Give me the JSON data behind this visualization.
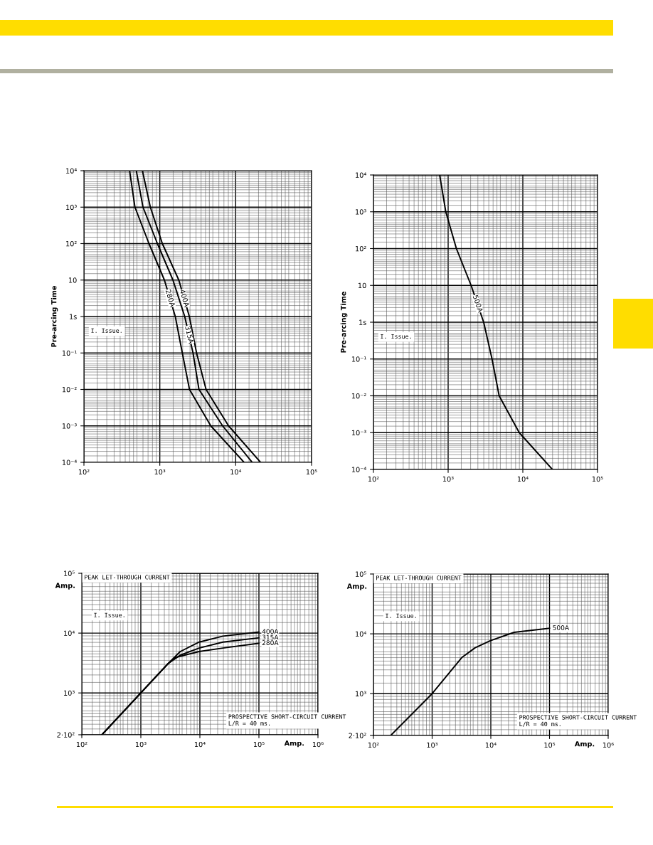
{
  "chart_data": [
    {
      "type": "line",
      "ylabel": "Pre-arcing Time",
      "annotations": [
        "I. Issue."
      ],
      "log": "xy",
      "grid": true,
      "legend": false,
      "marker": "none",
      "line_style": "solid",
      "xlim": [
        100,
        100000
      ],
      "xticks": [
        {
          "value": 100,
          "label": "10²"
        },
        {
          "value": 1000,
          "label": "10³"
        },
        {
          "value": 10000,
          "label": "10⁴"
        },
        {
          "value": 100000,
          "label": "10⁵"
        }
      ],
      "ylim": [
        0.0001,
        10000
      ],
      "yticks": [
        {
          "value": 0.0001,
          "label": "10⁻⁴"
        },
        {
          "value": 0.001,
          "label": "10⁻³"
        },
        {
          "value": 0.01,
          "label": "10⁻²"
        },
        {
          "value": 0.1,
          "label": "10⁻¹"
        },
        {
          "value": 1,
          "label": "1s"
        },
        10,
        {
          "value": 100,
          "label": "10²"
        },
        {
          "value": 1000,
          "label": "10³"
        },
        {
          "value": 10000,
          "label": "10⁴"
        }
      ],
      "series": [
        {
          "name": "280A",
          "color": "#000000",
          "x": [
            400,
            470,
            720,
            1150,
            1600,
            1980,
            2460,
            4700,
            12900
          ],
          "values": [
            10000,
            1000,
            100,
            10,
            1,
            0.1,
            0.01,
            0.001,
            0.0001
          ]
        },
        {
          "name": "315A",
          "color": "#000000",
          "x": [
            490,
            600,
            930,
            1490,
            2130,
            2740,
            3280,
            6730,
            16500
          ],
          "values": [
            10000,
            1000,
            100,
            10,
            1,
            0.1,
            0.01,
            0.001,
            0.0001
          ]
        },
        {
          "name": "400A",
          "color": "#000000",
          "x": [
            590,
            750,
            1080,
            1780,
            2450,
            3050,
            4070,
            8060,
            21300
          ],
          "values": [
            10000,
            1000,
            100,
            10,
            1,
            0.1,
            0.01,
            0.001,
            0.0001
          ]
        }
      ]
    },
    {
      "type": "line",
      "ylabel": "Pre-arcing Time",
      "annotations": [
        "I. Issue."
      ],
      "log": "xy",
      "grid": true,
      "legend": false,
      "marker": "none",
      "line_style": "solid",
      "xlim": [
        100,
        100000
      ],
      "xticks": [
        {
          "value": 100,
          "label": "10²"
        },
        {
          "value": 1000,
          "label": "10³"
        },
        {
          "value": 10000,
          "label": "10⁴"
        },
        {
          "value": 100000,
          "label": "10⁵"
        }
      ],
      "ylim": [
        0.0001,
        10000
      ],
      "yticks": [
        {
          "value": 0.0001,
          "label": "10⁻⁴"
        },
        {
          "value": 0.001,
          "label": "10⁻³"
        },
        {
          "value": 0.01,
          "label": "10⁻²"
        },
        {
          "value": 0.1,
          "label": "10⁻¹"
        },
        {
          "value": 1,
          "label": "1s"
        },
        10,
        {
          "value": 100,
          "label": "10²"
        },
        {
          "value": 1000,
          "label": "10³"
        },
        {
          "value": 10000,
          "label": "10⁴"
        }
      ],
      "series": [
        {
          "name": "500A",
          "color": "#000000",
          "x": [
            770,
            930,
            1290,
            2030,
            2990,
            3870,
            4820,
            8950,
            24900
          ],
          "values": [
            10000,
            1000,
            100,
            10,
            1,
            0.1,
            0.01,
            0.001,
            0.0001
          ]
        }
      ]
    },
    {
      "type": "line",
      "xlabel": "Amp.",
      "ylabel": "Amp.",
      "annotations": [
        "PEAK LET-THROUGH CURRENT",
        "I. Issue.",
        "PROSPECTIVE SHORT-CIRCUIT CURRENT\nL/R = 40 ms."
      ],
      "log": "xy",
      "grid": true,
      "legend": false,
      "marker": "none",
      "line_style": "solid",
      "xlim": [
        100,
        1000000
      ],
      "xticks": [
        {
          "value": 100,
          "label": "10²"
        },
        {
          "value": 1000,
          "label": "10³"
        },
        {
          "value": 10000,
          "label": "10⁴"
        },
        {
          "value": 100000,
          "label": "10⁵"
        },
        {
          "value": 1000000,
          "label": "10⁶"
        }
      ],
      "ylim": [
        200,
        100000
      ],
      "yticks": [
        {
          "value": 200,
          "label": "2·10²"
        },
        {
          "value": 1000,
          "label": "10³"
        },
        {
          "value": 10000,
          "label": "10⁴"
        },
        {
          "value": 100000,
          "label": "10⁵"
        }
      ],
      "series": [
        {
          "name": "400A",
          "color": "#000000",
          "x": [
            219,
            1000,
            2920,
            4650,
            9730,
            24500,
            100000
          ],
          "values": [
            200,
            1000,
            3120,
            4920,
            7080,
            8890,
            10400
          ]
        },
        {
          "name": "315A",
          "color": "#000000",
          "x": [
            219,
            1000,
            2920,
            4650,
            9730,
            24500,
            100000
          ],
          "values": [
            200,
            1000,
            3120,
            4280,
            5630,
            7080,
            8340
          ]
        },
        {
          "name": "280A",
          "color": "#000000",
          "x": [
            219,
            1000,
            2920,
            3860,
            9730,
            24500,
            100000
          ],
          "values": [
            200,
            1000,
            3120,
            3920,
            4920,
            5630,
            6760
          ]
        }
      ]
    },
    {
      "type": "line",
      "xlabel": "Amp.",
      "ylabel": "Amp.",
      "annotations": [
        "PEAK LET-THROUGH CURRENT",
        "I. Issue.",
        "PROSPECTIVE SHORT-CIRCUIT CURRENT\nL/R = 40 ms."
      ],
      "log": "xy",
      "grid": true,
      "legend": false,
      "marker": "none",
      "line_style": "solid",
      "xlim": [
        100,
        1000000
      ],
      "xticks": [
        {
          "value": 100,
          "label": "10²"
        },
        {
          "value": 1000,
          "label": "10³"
        },
        {
          "value": 10000,
          "label": "10⁴"
        },
        {
          "value": 100000,
          "label": "10⁵"
        },
        {
          "value": 1000000,
          "label": "10⁶"
        }
      ],
      "ylim": [
        200,
        100000
      ],
      "yticks": [
        {
          "value": 200,
          "label": "2·10²"
        },
        {
          "value": 1000,
          "label": "10³"
        },
        {
          "value": 10000,
          "label": "10⁴"
        },
        {
          "value": 100000,
          "label": "10⁵"
        }
      ],
      "series": [
        {
          "name": "500A",
          "color": "#000000",
          "x": [
            197,
            1000,
            3250,
            5420,
            9910,
            25000,
            100000
          ],
          "values": [
            200,
            1000,
            4070,
            5860,
            7690,
            10600,
            12400
          ]
        }
      ]
    }
  ]
}
